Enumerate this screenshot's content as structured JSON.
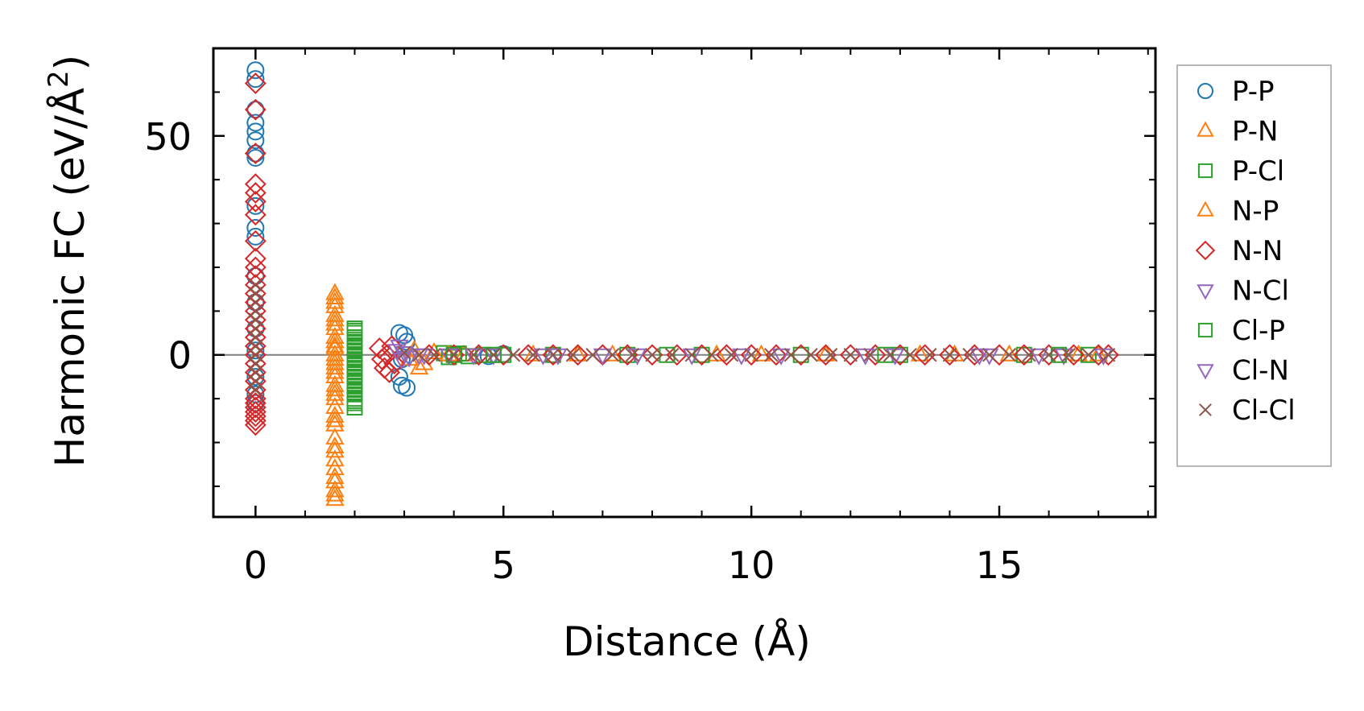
{
  "chart_data": {
    "type": "scatter",
    "xlabel": "Distance (Å)",
    "ylabel_main": "Harmonic FC (eV/Å",
    "ylabel_sup": "2",
    "ylabel_close": ")",
    "xlim": [
      -0.85,
      18.15
    ],
    "ylim": [
      -37,
      70
    ],
    "x_ticks": [
      0,
      5,
      10,
      15
    ],
    "x_tick_labels": [
      "0",
      "5",
      "10",
      "15"
    ],
    "x_minor_ticks": [
      1,
      2,
      3,
      4,
      6,
      7,
      8,
      9,
      11,
      12,
      13,
      14,
      16,
      17,
      18
    ],
    "y_ticks": [
      0,
      50
    ],
    "y_tick_labels": [
      "0",
      "50"
    ],
    "y_minor_ticks": [
      -30,
      -20,
      -10,
      10,
      20,
      30,
      40,
      60
    ],
    "zero_line": true,
    "grid": false,
    "legend_position": "outside-right",
    "series": [
      {
        "name": "P-P",
        "marker": "circle",
        "color": "#1f77b4",
        "points": [
          [
            0,
            65
          ],
          [
            0,
            63
          ],
          [
            0,
            56
          ],
          [
            0,
            53
          ],
          [
            0,
            51
          ],
          [
            0,
            49
          ],
          [
            0,
            46
          ],
          [
            0,
            45
          ],
          [
            0,
            34
          ],
          [
            0,
            29
          ],
          [
            0,
            27
          ],
          [
            0,
            18
          ],
          [
            0,
            12
          ],
          [
            0,
            6
          ],
          [
            0,
            1
          ],
          [
            0,
            -5
          ],
          [
            0,
            -9
          ],
          [
            0,
            -11
          ],
          [
            2.9,
            5
          ],
          [
            3.0,
            4.5
          ],
          [
            3.05,
            3
          ],
          [
            2.95,
            -1
          ],
          [
            2.9,
            -5
          ],
          [
            2.95,
            -7
          ],
          [
            3.05,
            -7.5
          ],
          [
            4.7,
            -0.3
          ],
          [
            5.0,
            0.2
          ]
        ]
      },
      {
        "name": "P-N",
        "marker": "triangle-up",
        "color": "#ff7f0e",
        "points": [
          [
            1.6,
            14
          ],
          [
            1.6,
            12
          ],
          [
            1.6,
            11
          ],
          [
            1.6,
            9
          ],
          [
            1.6,
            8
          ],
          [
            1.6,
            6
          ],
          [
            1.6,
            4
          ],
          [
            1.6,
            3
          ],
          [
            1.6,
            1.5
          ],
          [
            1.6,
            0
          ],
          [
            1.6,
            -1
          ],
          [
            1.6,
            -2
          ],
          [
            1.6,
            -4
          ],
          [
            1.6,
            -5
          ],
          [
            1.6,
            -7
          ],
          [
            1.6,
            -9
          ],
          [
            1.6,
            -10
          ],
          [
            1.6,
            -12
          ],
          [
            1.6,
            -14
          ],
          [
            1.6,
            -16
          ],
          [
            1.6,
            -19
          ],
          [
            1.6,
            -21
          ],
          [
            1.6,
            -24
          ],
          [
            1.6,
            -26
          ],
          [
            1.6,
            -29
          ],
          [
            1.6,
            -31
          ],
          [
            1.6,
            -33
          ],
          [
            3.1,
            -1
          ],
          [
            3.3,
            -3
          ],
          [
            3.6,
            0.5
          ],
          [
            4.2,
            0
          ],
          [
            5.6,
            0
          ],
          [
            7.2,
            0
          ],
          [
            9.3,
            0
          ],
          [
            11.5,
            0
          ],
          [
            13.4,
            0
          ],
          [
            15.2,
            0
          ],
          [
            16.6,
            0
          ]
        ]
      },
      {
        "name": "P-Cl",
        "marker": "square",
        "color": "#2ca02c",
        "points": [
          [
            2.0,
            6
          ],
          [
            2.0,
            5
          ],
          [
            2.0,
            4
          ],
          [
            2.0,
            3
          ],
          [
            2.0,
            2
          ],
          [
            2.0,
            1
          ],
          [
            2.0,
            0
          ],
          [
            2.0,
            -1
          ],
          [
            2.0,
            -2
          ],
          [
            2.0,
            -3
          ],
          [
            2.0,
            -4
          ],
          [
            2.0,
            -5
          ],
          [
            2.0,
            -6
          ],
          [
            2.0,
            -7
          ],
          [
            2.0,
            -8
          ],
          [
            2.0,
            -9
          ],
          [
            2.0,
            -10
          ],
          [
            2.0,
            -11
          ],
          [
            2.0,
            -12
          ],
          [
            3.8,
            0.4
          ],
          [
            3.9,
            -0.5
          ],
          [
            4.1,
            0.3
          ],
          [
            4.3,
            -0.3
          ],
          [
            4.6,
            0
          ],
          [
            5.0,
            0
          ],
          [
            6.0,
            0
          ],
          [
            7.5,
            0
          ],
          [
            9.0,
            0
          ],
          [
            11.0,
            0
          ],
          [
            13.0,
            0
          ],
          [
            15.5,
            0
          ],
          [
            16.8,
            0
          ]
        ]
      },
      {
        "name": "N-P",
        "marker": "triangle-up",
        "color": "#ff7f0e",
        "points": [
          [
            1.6,
            13
          ],
          [
            1.6,
            7
          ],
          [
            1.6,
            2
          ],
          [
            1.6,
            -3
          ],
          [
            1.6,
            -8
          ],
          [
            1.6,
            -15
          ],
          [
            1.6,
            -22
          ],
          [
            1.6,
            -28
          ],
          [
            1.6,
            -32
          ],
          [
            3.2,
            1
          ],
          [
            3.4,
            -2
          ],
          [
            3.9,
            0
          ],
          [
            6.5,
            0
          ],
          [
            10.2,
            0
          ],
          [
            14.1,
            0
          ],
          [
            17.0,
            0
          ]
        ]
      },
      {
        "name": "N-N",
        "marker": "diamond",
        "color": "#d62728",
        "points": [
          [
            0,
            62
          ],
          [
            0,
            56
          ],
          [
            0,
            46
          ],
          [
            0,
            39
          ],
          [
            0,
            37
          ],
          [
            0,
            35
          ],
          [
            0,
            32
          ],
          [
            0,
            26
          ],
          [
            0,
            22
          ],
          [
            0,
            20
          ],
          [
            0,
            18
          ],
          [
            0,
            16
          ],
          [
            0,
            14
          ],
          [
            0,
            12
          ],
          [
            0,
            10
          ],
          [
            0,
            8
          ],
          [
            0,
            6
          ],
          [
            0,
            4
          ],
          [
            0,
            2
          ],
          [
            0,
            0
          ],
          [
            0,
            -2
          ],
          [
            0,
            -4
          ],
          [
            0,
            -6
          ],
          [
            0,
            -8
          ],
          [
            0,
            -10
          ],
          [
            0,
            -11
          ],
          [
            0,
            -12
          ],
          [
            0,
            -13
          ],
          [
            0,
            -14
          ],
          [
            0,
            -15
          ],
          [
            0,
            -16
          ],
          [
            2.5,
            1.5
          ],
          [
            2.55,
            -1
          ],
          [
            2.6,
            -3
          ],
          [
            2.7,
            -4
          ],
          [
            2.65,
            0
          ],
          [
            2.75,
            2
          ],
          [
            2.8,
            -2
          ],
          [
            3.5,
            0
          ],
          [
            4.0,
            0
          ],
          [
            4.5,
            0
          ],
          [
            5.0,
            0
          ],
          [
            5.5,
            0
          ],
          [
            6.0,
            0
          ],
          [
            6.5,
            0
          ],
          [
            7.0,
            0
          ],
          [
            7.5,
            0
          ],
          [
            8.0,
            0
          ],
          [
            8.5,
            0
          ],
          [
            9.0,
            0
          ],
          [
            9.5,
            0
          ],
          [
            10.0,
            0
          ],
          [
            10.5,
            0
          ],
          [
            11.0,
            0
          ],
          [
            11.5,
            0
          ],
          [
            12.0,
            0
          ],
          [
            12.5,
            0
          ],
          [
            13.0,
            0
          ],
          [
            13.5,
            0
          ],
          [
            14.0,
            0
          ],
          [
            14.5,
            0
          ],
          [
            15.0,
            0
          ],
          [
            15.5,
            0
          ],
          [
            16.0,
            0
          ],
          [
            16.5,
            0
          ],
          [
            17.0,
            0
          ],
          [
            17.2,
            0
          ]
        ]
      },
      {
        "name": "N-Cl",
        "marker": "triangle-down",
        "color": "#9467bd",
        "points": [
          [
            2.85,
            1
          ],
          [
            2.95,
            -1
          ],
          [
            3.0,
            0.5
          ],
          [
            3.3,
            0
          ],
          [
            3.9,
            0
          ],
          [
            4.8,
            0
          ],
          [
            6.1,
            0
          ],
          [
            7.7,
            0
          ],
          [
            9.8,
            0
          ],
          [
            12.3,
            0
          ],
          [
            14.6,
            0
          ],
          [
            16.3,
            0
          ]
        ]
      },
      {
        "name": "Cl-P",
        "marker": "square",
        "color": "#2ca02c",
        "points": [
          [
            2.0,
            5.5
          ],
          [
            2.0,
            3.5
          ],
          [
            2.0,
            1.5
          ],
          [
            2.0,
            -0.5
          ],
          [
            2.0,
            -2.5
          ],
          [
            2.0,
            -4.5
          ],
          [
            2.0,
            -6.5
          ],
          [
            2.0,
            -8.5
          ],
          [
            2.0,
            -10.5
          ],
          [
            4.0,
            0
          ],
          [
            4.8,
            0
          ],
          [
            8.3,
            0
          ],
          [
            12.7,
            0
          ],
          [
            16.2,
            0
          ]
        ]
      },
      {
        "name": "Cl-N",
        "marker": "triangle-down",
        "color": "#9467bd",
        "points": [
          [
            2.9,
            2
          ],
          [
            3.1,
            -0.5
          ],
          [
            3.4,
            0
          ],
          [
            4.4,
            0
          ],
          [
            5.8,
            0
          ],
          [
            7.0,
            0
          ],
          [
            8.8,
            0
          ],
          [
            10.6,
            0
          ],
          [
            12.9,
            0
          ],
          [
            14.8,
            0
          ],
          [
            15.8,
            0
          ],
          [
            17.1,
            0
          ]
        ]
      },
      {
        "name": "Cl-Cl",
        "marker": "x",
        "color": "#8c564b",
        "points": [
          [
            0,
            16
          ],
          [
            0,
            14
          ],
          [
            0,
            12
          ],
          [
            0,
            10
          ],
          [
            0,
            8
          ],
          [
            0,
            6
          ],
          [
            0,
            4
          ],
          [
            0,
            2
          ],
          [
            0,
            0
          ],
          [
            0,
            -2
          ],
          [
            0,
            -4
          ],
          [
            0,
            -6
          ],
          [
            0,
            -8
          ],
          [
            3.0,
            0.5
          ],
          [
            3.3,
            0
          ],
          [
            3.6,
            0
          ],
          [
            4.0,
            0
          ],
          [
            4.4,
            0
          ],
          [
            4.8,
            0
          ],
          [
            5.2,
            0
          ],
          [
            5.6,
            0
          ],
          [
            6.0,
            0
          ],
          [
            6.4,
            0
          ],
          [
            6.8,
            0
          ],
          [
            7.2,
            0
          ],
          [
            7.6,
            0
          ],
          [
            8.0,
            0
          ],
          [
            8.4,
            0
          ],
          [
            8.8,
            0
          ],
          [
            9.2,
            0
          ],
          [
            9.6,
            0
          ],
          [
            10.0,
            0
          ],
          [
            10.4,
            0
          ],
          [
            10.8,
            0
          ],
          [
            11.2,
            0
          ],
          [
            11.6,
            0
          ],
          [
            12.0,
            0
          ],
          [
            12.4,
            0
          ],
          [
            12.8,
            0
          ],
          [
            13.2,
            0
          ],
          [
            13.6,
            0
          ],
          [
            14.0,
            0
          ],
          [
            14.4,
            0
          ],
          [
            14.8,
            0
          ],
          [
            15.2,
            0
          ],
          [
            15.6,
            0
          ],
          [
            16.0,
            0
          ],
          [
            16.4,
            0
          ],
          [
            16.8,
            0
          ],
          [
            17.2,
            0
          ]
        ]
      }
    ]
  }
}
